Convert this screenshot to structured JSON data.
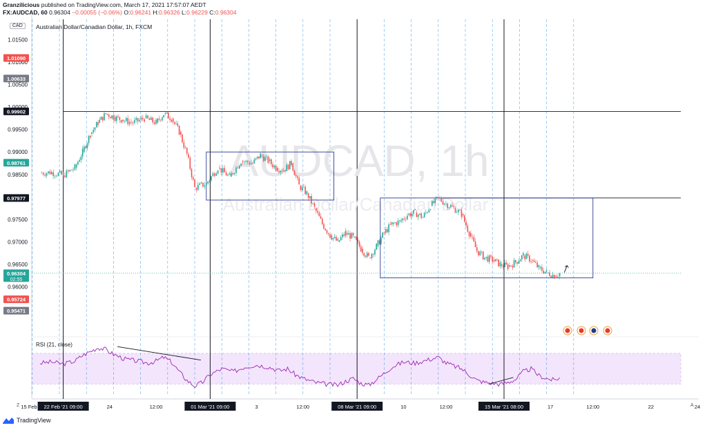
{
  "header": {
    "line1_user": "Granzilicious",
    "line1_rest": " published on TradingView.com, March 17, 2021 17:57:07 AEDT",
    "symbol": "FX:AUDCAD, 60",
    "last": "0.96304",
    "change": "−0.00055 (−0.06%)",
    "o_label": "O:",
    "o": "0.96241",
    "h_label": "H:",
    "h": "0.96326",
    "l_label": "L:",
    "l": "0.96229",
    "c_label": "C:",
    "c": "0.96304"
  },
  "currency": "CAD",
  "pair_title": "Australian Dollar/Canadian Dollar, 1h, FXCM",
  "watermark": {
    "big": "AUDCAD, 1h",
    "small": "Australian Dollar/Canadian Dollar"
  },
  "rsi_label": "RSI (21, close)",
  "footer": {
    "brand": "TradingView",
    "z": "Z",
    "a": "A"
  },
  "colors": {
    "up": "#26a69a",
    "down": "#ef5350",
    "rsi": "#9c27b0",
    "rsi_band": "#f3e5fc",
    "box": "#2a3a8f",
    "vline": "#1e88e5"
  },
  "chart_data": {
    "type": "line",
    "title": "Australian Dollar/Canadian Dollar, 1h, FXCM",
    "y_ticks": [
      "1.01500",
      "1.01000",
      "1.00500",
      "1.00000",
      "0.99500",
      "0.99000",
      "0.98500",
      "0.98000",
      "0.97500",
      "0.97000",
      "0.96500",
      "0.96000"
    ],
    "y_tick_values": [
      1.015,
      1.01,
      1.005,
      1.0,
      0.995,
      0.99,
      0.985,
      0.98,
      0.975,
      0.97,
      0.965,
      0.96
    ],
    "ylim": [
      0.9535,
      1.0195
    ],
    "price_labels": [
      {
        "text": "1.01090",
        "value": 1.0109,
        "color": "#ef5350"
      },
      {
        "text": "1.00633",
        "value": 1.00633,
        "color": "#787b86"
      },
      {
        "text": "0.99902",
        "value": 0.99902,
        "color": "#131722"
      },
      {
        "text": "0.98761",
        "value": 0.98761,
        "color": "#26a69a"
      },
      {
        "text": "0.97977",
        "value": 0.97977,
        "color": "#131722"
      },
      {
        "text": "0.96304",
        "value": 0.96304,
        "color": "#26a69a",
        "sub": "02:55"
      },
      {
        "text": "0.95724",
        "value": 0.95724,
        "color": "#ef5350"
      },
      {
        "text": "0.95471",
        "value": 0.95471,
        "color": "#787b86"
      }
    ],
    "x_tick_labels": [
      {
        "text": "15 Feb '21",
        "t": -9
      },
      {
        "text": "22 Feb '21  09:00",
        "t": 30,
        "box": true
      },
      {
        "text": "24",
        "t": 90
      },
      {
        "text": "12:00",
        "t": 150
      },
      {
        "text": "01 Mar '21  09:00",
        "t": 220,
        "box": true
      },
      {
        "text": "3",
        "t": 280
      },
      {
        "text": "12:00",
        "t": 340
      },
      {
        "text": "08 Mar '21  09:00",
        "t": 410,
        "box": true
      },
      {
        "text": "10",
        "t": 470
      },
      {
        "text": "12:00",
        "t": 525
      },
      {
        "text": "15 Mar '21  08:00",
        "t": 600,
        "box": true
      },
      {
        "text": "17",
        "t": 660
      },
      {
        "text": "12:00",
        "t": 715
      },
      {
        "text": "22",
        "t": 790
      },
      {
        "text": "24",
        "t": 850
      }
    ],
    "price_series": [
      [
        0,
        0.9853
      ],
      [
        15,
        0.9855
      ],
      [
        30,
        0.9848
      ],
      [
        45,
        0.9865
      ],
      [
        55,
        0.99
      ],
      [
        65,
        0.994
      ],
      [
        75,
        0.9965
      ],
      [
        85,
        0.9985
      ],
      [
        95,
        0.9978
      ],
      [
        105,
        0.9972
      ],
      [
        120,
        0.9965
      ],
      [
        135,
        0.9975
      ],
      [
        150,
        0.9965
      ],
      [
        160,
        0.9985
      ],
      [
        170,
        0.9975
      ],
      [
        180,
        0.9945
      ],
      [
        190,
        0.9895
      ],
      [
        200,
        0.982
      ],
      [
        215,
        0.983
      ],
      [
        230,
        0.9865
      ],
      [
        245,
        0.9845
      ],
      [
        260,
        0.988
      ],
      [
        275,
        0.9875
      ],
      [
        285,
        0.9893
      ],
      [
        295,
        0.988
      ],
      [
        305,
        0.9865
      ],
      [
        315,
        0.986
      ],
      [
        325,
        0.9875
      ],
      [
        335,
        0.9825
      ],
      [
        345,
        0.9808
      ],
      [
        355,
        0.9775
      ],
      [
        365,
        0.974
      ],
      [
        375,
        0.9715
      ],
      [
        385,
        0.97
      ],
      [
        395,
        0.972
      ],
      [
        405,
        0.971
      ],
      [
        415,
        0.9685
      ],
      [
        425,
        0.9665
      ],
      [
        435,
        0.969
      ],
      [
        445,
        0.972
      ],
      [
        455,
        0.974
      ],
      [
        465,
        0.9745
      ],
      [
        475,
        0.976
      ],
      [
        485,
        0.9765
      ],
      [
        495,
        0.9755
      ],
      [
        505,
        0.978
      ],
      [
        515,
        0.9797
      ],
      [
        525,
        0.9785
      ],
      [
        535,
        0.9775
      ],
      [
        545,
        0.9762
      ],
      [
        555,
        0.972
      ],
      [
        565,
        0.968
      ],
      [
        575,
        0.9665
      ],
      [
        585,
        0.966
      ],
      [
        595,
        0.965
      ],
      [
        605,
        0.9645
      ],
      [
        615,
        0.9655
      ],
      [
        625,
        0.967
      ],
      [
        635,
        0.966
      ],
      [
        645,
        0.9642
      ],
      [
        655,
        0.9632
      ],
      [
        665,
        0.9625
      ],
      [
        672,
        0.963
      ]
    ],
    "rsi_series": [
      [
        0,
        56
      ],
      [
        15,
        57
      ],
      [
        30,
        55
      ],
      [
        45,
        58
      ],
      [
        55,
        64
      ],
      [
        65,
        68
      ],
      [
        75,
        72
      ],
      [
        85,
        70
      ],
      [
        95,
        65
      ],
      [
        110,
        60
      ],
      [
        125,
        58
      ],
      [
        140,
        56
      ],
      [
        150,
        58
      ],
      [
        160,
        62
      ],
      [
        170,
        57
      ],
      [
        180,
        47
      ],
      [
        190,
        38
      ],
      [
        200,
        32
      ],
      [
        210,
        36
      ],
      [
        220,
        44
      ],
      [
        235,
        50
      ],
      [
        250,
        47
      ],
      [
        265,
        52
      ],
      [
        280,
        54
      ],
      [
        295,
        52
      ],
      [
        310,
        48
      ],
      [
        320,
        50
      ],
      [
        330,
        44
      ],
      [
        340,
        40
      ],
      [
        355,
        36
      ],
      [
        370,
        34
      ],
      [
        385,
        33
      ],
      [
        395,
        37
      ],
      [
        405,
        40
      ],
      [
        415,
        35
      ],
      [
        425,
        33
      ],
      [
        440,
        42
      ],
      [
        455,
        52
      ],
      [
        470,
        57
      ],
      [
        485,
        56
      ],
      [
        500,
        59
      ],
      [
        515,
        62
      ],
      [
        525,
        56
      ],
      [
        535,
        53
      ],
      [
        545,
        50
      ],
      [
        555,
        44
      ],
      [
        565,
        38
      ],
      [
        575,
        36
      ],
      [
        585,
        35
      ],
      [
        595,
        34
      ],
      [
        605,
        36
      ],
      [
        615,
        39
      ],
      [
        625,
        47
      ],
      [
        635,
        50
      ],
      [
        645,
        43
      ],
      [
        655,
        40
      ],
      [
        665,
        38
      ],
      [
        672,
        41
      ]
    ],
    "resistance_lines": [
      0.99902,
      0.97977
    ],
    "current_price": 0.96304
  }
}
